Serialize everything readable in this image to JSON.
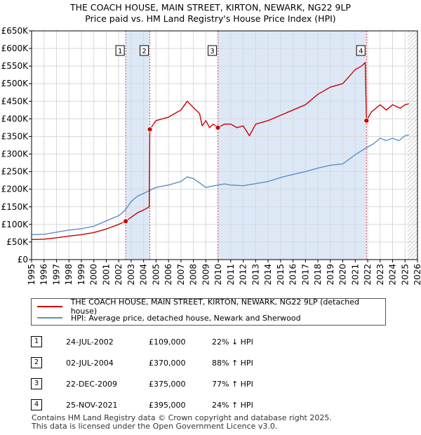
{
  "title_line1": "THE COACH HOUSE, MAIN STREET, KIRTON, NEWARK, NG22 9LP",
  "title_line2": "Price paid vs. HM Land Registry's House Price Index (HPI)",
  "colors": {
    "red": "#cc0000",
    "blue": "#5b8fc9",
    "shade": "#dde8f7",
    "marker_line": "#d94a4a"
  },
  "chart_data": {
    "type": "line",
    "xlim": [
      1995,
      2026
    ],
    "ylim": [
      0,
      650000
    ],
    "yticks": [
      {
        "value": 0,
        "label": "£0"
      },
      {
        "value": 50000,
        "label": "£50K"
      },
      {
        "value": 100000,
        "label": "£100K"
      },
      {
        "value": 150000,
        "label": "£150K"
      },
      {
        "value": 200000,
        "label": "£200K"
      },
      {
        "value": 250000,
        "label": "£250K"
      },
      {
        "value": 300000,
        "label": "£300K"
      },
      {
        "value": 350000,
        "label": "£350K"
      },
      {
        "value": 400000,
        "label": "£400K"
      },
      {
        "value": 450000,
        "label": "£450K"
      },
      {
        "value": 500000,
        "label": "£500K"
      },
      {
        "value": 550000,
        "label": "£550K"
      },
      {
        "value": 600000,
        "label": "£600K"
      },
      {
        "value": 650000,
        "label": "£650K"
      }
    ],
    "xticks": [
      "1995",
      "1996",
      "1997",
      "1998",
      "1999",
      "2000",
      "2001",
      "2002",
      "2003",
      "2004",
      "2005",
      "2006",
      "2007",
      "2008",
      "2009",
      "2010",
      "2011",
      "2012",
      "2013",
      "2014",
      "2015",
      "2016",
      "2017",
      "2018",
      "2019",
      "2020",
      "2021",
      "2022",
      "2023",
      "2024",
      "2025",
      "2026"
    ],
    "shaded_ranges": [
      [
        2002.56,
        2004.5
      ],
      [
        2009.97,
        2021.9
      ]
    ],
    "hatch_from": 2025.2,
    "series": [
      {
        "name": "THE COACH HOUSE, MAIN STREET, KIRTON, NEWARK, NG22 9LP (detached house)",
        "color": "#cc0000",
        "points": [
          [
            1995,
            57000
          ],
          [
            1996,
            58000
          ],
          [
            1997,
            62000
          ],
          [
            1998,
            67000
          ],
          [
            1999,
            71000
          ],
          [
            2000,
            77000
          ],
          [
            2001,
            87000
          ],
          [
            2002,
            100000
          ],
          [
            2002.56,
            109000
          ],
          [
            2003,
            120000
          ],
          [
            2003.5,
            133000
          ],
          [
            2004,
            141000
          ],
          [
            2004.45,
            150000
          ],
          [
            2004.5,
            370000
          ],
          [
            2004.8,
            385000
          ],
          [
            2005,
            395000
          ],
          [
            2006,
            405000
          ],
          [
            2006.5,
            415000
          ],
          [
            2007,
            425000
          ],
          [
            2007.5,
            450000
          ],
          [
            2008,
            432000
          ],
          [
            2008.5,
            415000
          ],
          [
            2008.7,
            380000
          ],
          [
            2009,
            395000
          ],
          [
            2009.3,
            375000
          ],
          [
            2009.6,
            385000
          ],
          [
            2009.97,
            375000
          ],
          [
            2010.5,
            385000
          ],
          [
            2011,
            385000
          ],
          [
            2011.5,
            375000
          ],
          [
            2012,
            380000
          ],
          [
            2012.5,
            352000
          ],
          [
            2013,
            385000
          ],
          [
            2014,
            395000
          ],
          [
            2015,
            410000
          ],
          [
            2016,
            425000
          ],
          [
            2017,
            440000
          ],
          [
            2018,
            470000
          ],
          [
            2019,
            490000
          ],
          [
            2020,
            500000
          ],
          [
            2020.5,
            520000
          ],
          [
            2021,
            540000
          ],
          [
            2021.5,
            550000
          ],
          [
            2021.8,
            560000
          ],
          [
            2021.9,
            395000
          ],
          [
            2022.3,
            420000
          ],
          [
            2023,
            440000
          ],
          [
            2023.5,
            425000
          ],
          [
            2024,
            440000
          ],
          [
            2024.6,
            430000
          ],
          [
            2025,
            440000
          ],
          [
            2025.3,
            443000
          ]
        ]
      },
      {
        "name": "HPI: Average price, detached house, Newark and Sherwood",
        "color": "#5b8fc9",
        "points": [
          [
            1995,
            71000
          ],
          [
            1996,
            72000
          ],
          [
            1997,
            78000
          ],
          [
            1998,
            84000
          ],
          [
            1999,
            88000
          ],
          [
            2000,
            95000
          ],
          [
            2001,
            110000
          ],
          [
            2002,
            125000
          ],
          [
            2002.5,
            140000
          ],
          [
            2003,
            165000
          ],
          [
            2003.5,
            180000
          ],
          [
            2004,
            188000
          ],
          [
            2004.5,
            197000
          ],
          [
            2005,
            205000
          ],
          [
            2006,
            212000
          ],
          [
            2007,
            222000
          ],
          [
            2007.5,
            235000
          ],
          [
            2008,
            230000
          ],
          [
            2008.5,
            218000
          ],
          [
            2009,
            205000
          ],
          [
            2009.97,
            212000
          ],
          [
            2010.5,
            215000
          ],
          [
            2011,
            212000
          ],
          [
            2012,
            210000
          ],
          [
            2013,
            216000
          ],
          [
            2014,
            222000
          ],
          [
            2015,
            233000
          ],
          [
            2016,
            242000
          ],
          [
            2017,
            250000
          ],
          [
            2018,
            260000
          ],
          [
            2019,
            268000
          ],
          [
            2020,
            272000
          ],
          [
            2020.5,
            285000
          ],
          [
            2021,
            298000
          ],
          [
            2021.9,
            318000
          ],
          [
            2022.5,
            330000
          ],
          [
            2023,
            345000
          ],
          [
            2023.5,
            338000
          ],
          [
            2024,
            345000
          ],
          [
            2024.5,
            338000
          ],
          [
            2025,
            352000
          ],
          [
            2025.3,
            355000
          ]
        ]
      }
    ],
    "sales": [
      {
        "n": "1",
        "year": 2002.56,
        "value": 109000
      },
      {
        "n": "2",
        "year": 2004.5,
        "value": 370000
      },
      {
        "n": "3",
        "year": 2009.97,
        "value": 375000
      },
      {
        "n": "4",
        "year": 2021.9,
        "value": 395000
      }
    ]
  },
  "legend": {
    "red_label": "THE COACH HOUSE, MAIN STREET, KIRTON, NEWARK, NG22 9LP (detached house)",
    "blue_label": "HPI: Average price, detached house, Newark and Sherwood"
  },
  "sales_table": [
    {
      "n": "1",
      "date": "24-JUL-2002",
      "price": "£109,000",
      "hpi": "22% ↓ HPI"
    },
    {
      "n": "2",
      "date": "02-JUL-2004",
      "price": "£370,000",
      "hpi": "88% ↑ HPI"
    },
    {
      "n": "3",
      "date": "22-DEC-2009",
      "price": "£375,000",
      "hpi": "77% ↑ HPI"
    },
    {
      "n": "4",
      "date": "25-NOV-2021",
      "price": "£395,000",
      "hpi": "24% ↑ HPI"
    }
  ],
  "footer": {
    "line1": "Contains HM Land Registry data © Crown copyright and database right 2025.",
    "line2": "This data is licensed under the Open Government Licence v3.0."
  }
}
